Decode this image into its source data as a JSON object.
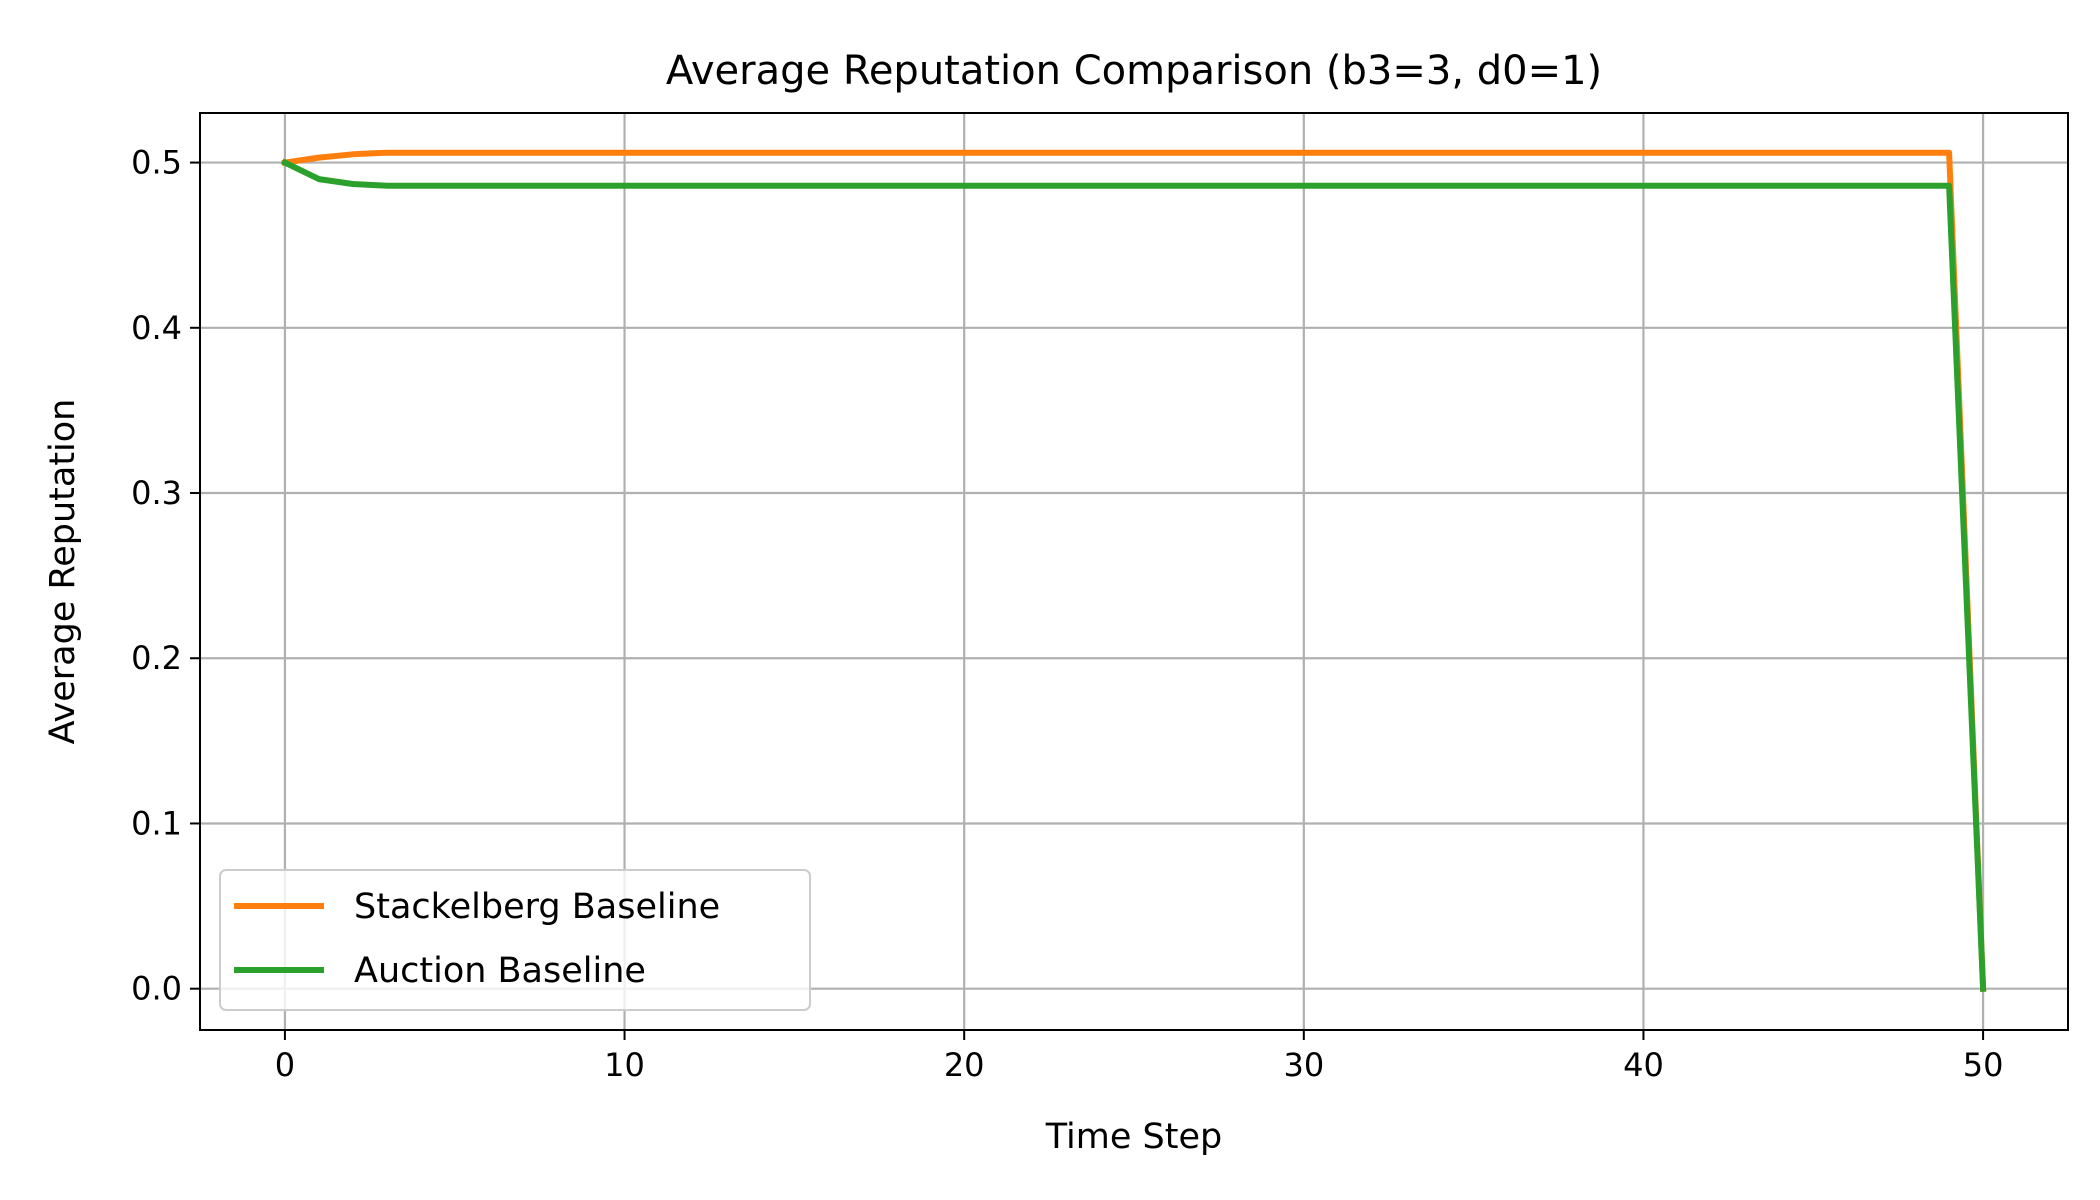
{
  "chart_data": {
    "type": "line",
    "title": "Average Reputation Comparison (b3=3, d0=1)",
    "xlabel": "Time Step",
    "ylabel": "Average Reputation",
    "xlim": [
      -2.5,
      52.5
    ],
    "ylim": [
      -0.025,
      0.53
    ],
    "xticks": [
      0,
      10,
      20,
      30,
      40,
      50
    ],
    "yticks": [
      0.0,
      0.1,
      0.2,
      0.3,
      0.4,
      0.5
    ],
    "xtick_labels": [
      "0",
      "10",
      "20",
      "30",
      "40",
      "50"
    ],
    "ytick_labels": [
      "0.0",
      "0.1",
      "0.2",
      "0.3",
      "0.4",
      "0.5"
    ],
    "grid": true,
    "legend_position": "lower-left",
    "series": [
      {
        "name": "Stackelberg Baseline",
        "color": "#ff7f0e",
        "x": [
          0,
          1,
          2,
          3,
          4,
          5,
          10,
          20,
          30,
          40,
          48,
          49,
          50
        ],
        "y": [
          0.5,
          0.503,
          0.505,
          0.506,
          0.506,
          0.506,
          0.506,
          0.506,
          0.506,
          0.506,
          0.506,
          0.506,
          0.0
        ]
      },
      {
        "name": "Auction Baseline",
        "color": "#2ca02c",
        "x": [
          0,
          1,
          2,
          3,
          4,
          5,
          10,
          20,
          30,
          40,
          48,
          49,
          50
        ],
        "y": [
          0.5,
          0.49,
          0.487,
          0.486,
          0.486,
          0.486,
          0.486,
          0.486,
          0.486,
          0.486,
          0.486,
          0.486,
          0.0
        ]
      }
    ]
  }
}
